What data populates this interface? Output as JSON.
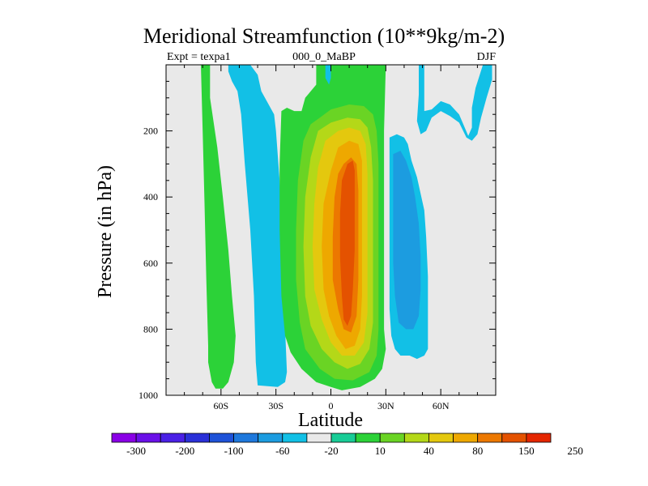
{
  "chart_data": {
    "type": "contour",
    "title": "Meridional Streamfunction (10**9kg/m-2)",
    "left_string": "Expt = texpa1",
    "center_string": "000_0_MaBP",
    "right_string": "DJF",
    "xlabel": "Latitude",
    "ylabel": "Pressure (in hPa)",
    "xlim": [
      -90,
      90
    ],
    "ylim": [
      1000,
      0
    ],
    "x_ticks": [
      {
        "value": -60,
        "label": "60S"
      },
      {
        "value": -30,
        "label": "30S"
      },
      {
        "value": 0,
        "label": "0"
      },
      {
        "value": 30,
        "label": "30N"
      },
      {
        "value": 60,
        "label": "60N"
      }
    ],
    "y_ticks": [
      {
        "value": 200,
        "label": "200"
      },
      {
        "value": 400,
        "label": "400"
      },
      {
        "value": 600,
        "label": "600"
      },
      {
        "value": 800,
        "label": "800"
      },
      {
        "value": 1000,
        "label": "1000"
      }
    ],
    "colorbar": {
      "colors": [
        "#8a00e6",
        "#6a10e8",
        "#4a20e6",
        "#2a30d8",
        "#1e52d8",
        "#1e78dc",
        "#1c9ce0",
        "#12c0e6",
        "#e9e9e9",
        "#18cc96",
        "#2cd238",
        "#6ad424",
        "#b4d818",
        "#e4c80e",
        "#eea800",
        "#ec7800",
        "#e45200",
        "#e42600"
      ],
      "labels": [
        "-300",
        "-200",
        "-100",
        "-60",
        "-20",
        "10",
        "40",
        "80",
        "150",
        "250"
      ]
    },
    "regions": [
      {
        "name": "southern-hemisphere-positive-cell",
        "value": 25,
        "level_color": "#2cd238",
        "polygon": [
          [
            -79,
            0
          ],
          [
            -71,
            0
          ],
          [
            -70,
            200
          ],
          [
            -69,
            420
          ],
          [
            -68,
            650
          ],
          [
            -67,
            850
          ],
          [
            -67,
            900
          ],
          [
            -65,
            960
          ],
          [
            -63,
            980
          ],
          [
            -59,
            980
          ],
          [
            -56,
            960
          ],
          [
            -53,
            900
          ],
          [
            -52,
            820
          ],
          [
            -54,
            700
          ],
          [
            -56,
            560
          ],
          [
            -59,
            400
          ],
          [
            -62,
            250
          ],
          [
            -66,
            100
          ],
          [
            -66,
            0
          ]
        ]
      },
      {
        "name": "southern-hemisphere-negative-cell",
        "value": -10,
        "level_color": "#12c0e6",
        "polygon": [
          [
            -56,
            0
          ],
          [
            -44,
            0
          ],
          [
            -40,
            30
          ],
          [
            -38,
            80
          ],
          [
            -31,
            150
          ],
          [
            -30,
            200
          ],
          [
            -28,
            350
          ],
          [
            -27,
            500
          ],
          [
            -26,
            650
          ],
          [
            -25,
            800
          ],
          [
            -24,
            930
          ],
          [
            -25,
            960
          ],
          [
            -29,
            975
          ],
          [
            -40,
            970
          ],
          [
            -41,
            900
          ],
          [
            -42,
            700
          ],
          [
            -44,
            500
          ],
          [
            -47,
            300
          ],
          [
            -49,
            150
          ],
          [
            -51,
            80
          ],
          [
            -54,
            50
          ],
          [
            -56,
            20
          ]
        ]
      },
      {
        "name": "tropical-cell-level-1",
        "value": 15,
        "level_color": "#2cd238",
        "polygon": [
          [
            -27,
            140
          ],
          [
            -24,
            130
          ],
          [
            -20,
            140
          ],
          [
            -16,
            140
          ],
          [
            -14,
            100
          ],
          [
            -8,
            60
          ],
          [
            -8,
            0
          ],
          [
            30,
            0
          ],
          [
            29,
            200
          ],
          [
            29,
            500
          ],
          [
            29,
            800
          ],
          [
            30,
            860
          ],
          [
            28,
            920
          ],
          [
            24,
            950
          ],
          [
            16,
            975
          ],
          [
            6,
            985
          ],
          [
            0,
            975
          ],
          [
            -8,
            960
          ],
          [
            -16,
            920
          ],
          [
            -22,
            870
          ],
          [
            -25,
            820
          ],
          [
            -27,
            700
          ],
          [
            -28,
            500
          ],
          [
            -28,
            300
          ]
        ]
      },
      {
        "name": "tropical-cell-level-2",
        "value": 40,
        "level_color": "#6ad424",
        "polygon": [
          [
            -11,
            180
          ],
          [
            -6,
            160
          ],
          [
            0,
            135
          ],
          [
            10,
            120
          ],
          [
            18,
            125
          ],
          [
            23,
            150
          ],
          [
            25,
            200
          ],
          [
            26,
            300
          ],
          [
            26,
            450
          ],
          [
            26,
            650
          ],
          [
            26,
            800
          ],
          [
            25,
            880
          ],
          [
            21,
            930
          ],
          [
            12,
            955
          ],
          [
            2,
            950
          ],
          [
            -6,
            920
          ],
          [
            -14,
            860
          ],
          [
            -17,
            780
          ],
          [
            -19,
            650
          ],
          [
            -19,
            500
          ],
          [
            -18,
            350
          ],
          [
            -15,
            230
          ]
        ]
      },
      {
        "name": "tropical-cell-level-3",
        "value": 80,
        "level_color": "#b4d818",
        "polygon": [
          [
            -7,
            200
          ],
          [
            0,
            175
          ],
          [
            9,
            160
          ],
          [
            16,
            165
          ],
          [
            20,
            190
          ],
          [
            22,
            250
          ],
          [
            23,
            350
          ],
          [
            23,
            500
          ],
          [
            23,
            650
          ],
          [
            23,
            780
          ],
          [
            21,
            860
          ],
          [
            16,
            905
          ],
          [
            9,
            920
          ],
          [
            2,
            900
          ],
          [
            -5,
            860
          ],
          [
            -11,
            790
          ],
          [
            -14,
            700
          ],
          [
            -15,
            550
          ],
          [
            -14,
            400
          ],
          [
            -11,
            280
          ]
        ]
      },
      {
        "name": "tropical-cell-level-4",
        "value": 120,
        "level_color": "#e4c80e",
        "polygon": [
          [
            -3,
            230
          ],
          [
            4,
            200
          ],
          [
            10,
            190
          ],
          [
            16,
            200
          ],
          [
            19,
            240
          ],
          [
            20,
            330
          ],
          [
            20,
            450
          ],
          [
            20,
            600
          ],
          [
            20,
            750
          ],
          [
            18,
            840
          ],
          [
            13,
            880
          ],
          [
            6,
            880
          ],
          [
            0,
            840
          ],
          [
            -5,
            770
          ],
          [
            -9,
            680
          ],
          [
            -10,
            550
          ],
          [
            -9,
            420
          ],
          [
            -7,
            310
          ]
        ]
      },
      {
        "name": "tropical-cell-level-5",
        "value": 150,
        "level_color": "#eea800",
        "polygon": [
          [
            4,
            250
          ],
          [
            10,
            230
          ],
          [
            15,
            240
          ],
          [
            17,
            290
          ],
          [
            17,
            400
          ],
          [
            17,
            550
          ],
          [
            17,
            700
          ],
          [
            16,
            800
          ],
          [
            13,
            850
          ],
          [
            8,
            860
          ],
          [
            3,
            820
          ],
          [
            -1,
            760
          ],
          [
            -4,
            680
          ],
          [
            -5,
            550
          ],
          [
            -4,
            420
          ],
          [
            0,
            320
          ]
        ]
      },
      {
        "name": "tropical-cell-level-6",
        "value": 200,
        "level_color": "#ec7800",
        "polygon": [
          [
            7,
            300
          ],
          [
            11,
            280
          ],
          [
            14,
            300
          ],
          [
            15,
            380
          ],
          [
            15,
            500
          ],
          [
            15,
            650
          ],
          [
            14,
            760
          ],
          [
            11,
            810
          ],
          [
            7,
            800
          ],
          [
            4,
            740
          ],
          [
            1,
            650
          ],
          [
            1,
            520
          ],
          [
            2,
            400
          ],
          [
            4,
            330
          ]
        ]
      },
      {
        "name": "tropical-cell-core",
        "value": 250,
        "level_color": "#e45200",
        "polygon": [
          [
            9,
            300
          ],
          [
            12,
            290
          ],
          [
            13,
            320
          ],
          [
            13,
            420
          ],
          [
            13,
            560
          ],
          [
            12,
            680
          ],
          [
            11,
            760
          ],
          [
            9,
            790
          ],
          [
            7,
            770
          ],
          [
            6,
            700
          ],
          [
            5,
            580
          ],
          [
            5,
            450
          ],
          [
            6,
            350
          ]
        ]
      },
      {
        "name": "upper-tropical-negative-cell",
        "value": -10,
        "level_color": "#12c0e6",
        "polygon": [
          [
            -3,
            0
          ],
          [
            0,
            0
          ],
          [
            0,
            40
          ],
          [
            -1,
            60
          ],
          [
            -3,
            40
          ]
        ]
      },
      {
        "name": "northern-hemisphere-negative-cell",
        "value": -15,
        "level_color": "#12c0e6",
        "polygon": [
          [
            32,
            220
          ],
          [
            36,
            210
          ],
          [
            40,
            220
          ],
          [
            42,
            240
          ],
          [
            44,
            290
          ],
          [
            47,
            340
          ],
          [
            49,
            390
          ],
          [
            51,
            440
          ],
          [
            52,
            520
          ],
          [
            53,
            640
          ],
          [
            53,
            780
          ],
          [
            53,
            860
          ],
          [
            51,
            880
          ],
          [
            47,
            890
          ],
          [
            43,
            880
          ],
          [
            38,
            880
          ],
          [
            35,
            860
          ],
          [
            33,
            820
          ],
          [
            32,
            740
          ],
          [
            32,
            600
          ],
          [
            32,
            450
          ],
          [
            32,
            300
          ]
        ]
      },
      {
        "name": "northern-hemisphere-negative-cell-inner",
        "value": -30,
        "level_color": "#1c9ce0",
        "polygon": [
          [
            34,
            270
          ],
          [
            38,
            260
          ],
          [
            41,
            290
          ],
          [
            44,
            340
          ],
          [
            46,
            400
          ],
          [
            48,
            480
          ],
          [
            49,
            580
          ],
          [
            49,
            680
          ],
          [
            48,
            760
          ],
          [
            45,
            800
          ],
          [
            41,
            800
          ],
          [
            37,
            780
          ],
          [
            35,
            700
          ],
          [
            34,
            600
          ],
          [
            34,
            450
          ],
          [
            34,
            350
          ]
        ]
      },
      {
        "name": "northern-polar-negative-cell",
        "value": -10,
        "level_color": "#12c0e6",
        "polygon": [
          [
            48,
            0
          ],
          [
            51,
            0
          ],
          [
            51,
            140
          ],
          [
            55,
            135
          ],
          [
            60,
            110
          ],
          [
            65,
            120
          ],
          [
            70,
            150
          ],
          [
            75,
            215
          ],
          [
            77,
            190
          ],
          [
            77,
            130
          ],
          [
            79,
            70
          ],
          [
            83,
            0
          ],
          [
            88,
            0
          ],
          [
            88,
            45
          ],
          [
            85,
            100
          ],
          [
            82,
            160
          ],
          [
            80,
            210
          ],
          [
            77,
            230
          ],
          [
            74,
            220
          ],
          [
            70,
            175
          ],
          [
            65,
            155
          ],
          [
            60,
            140
          ],
          [
            55,
            160
          ],
          [
            52,
            200
          ],
          [
            49,
            210
          ],
          [
            47,
            170
          ],
          [
            48,
            90
          ]
        ]
      }
    ]
  }
}
